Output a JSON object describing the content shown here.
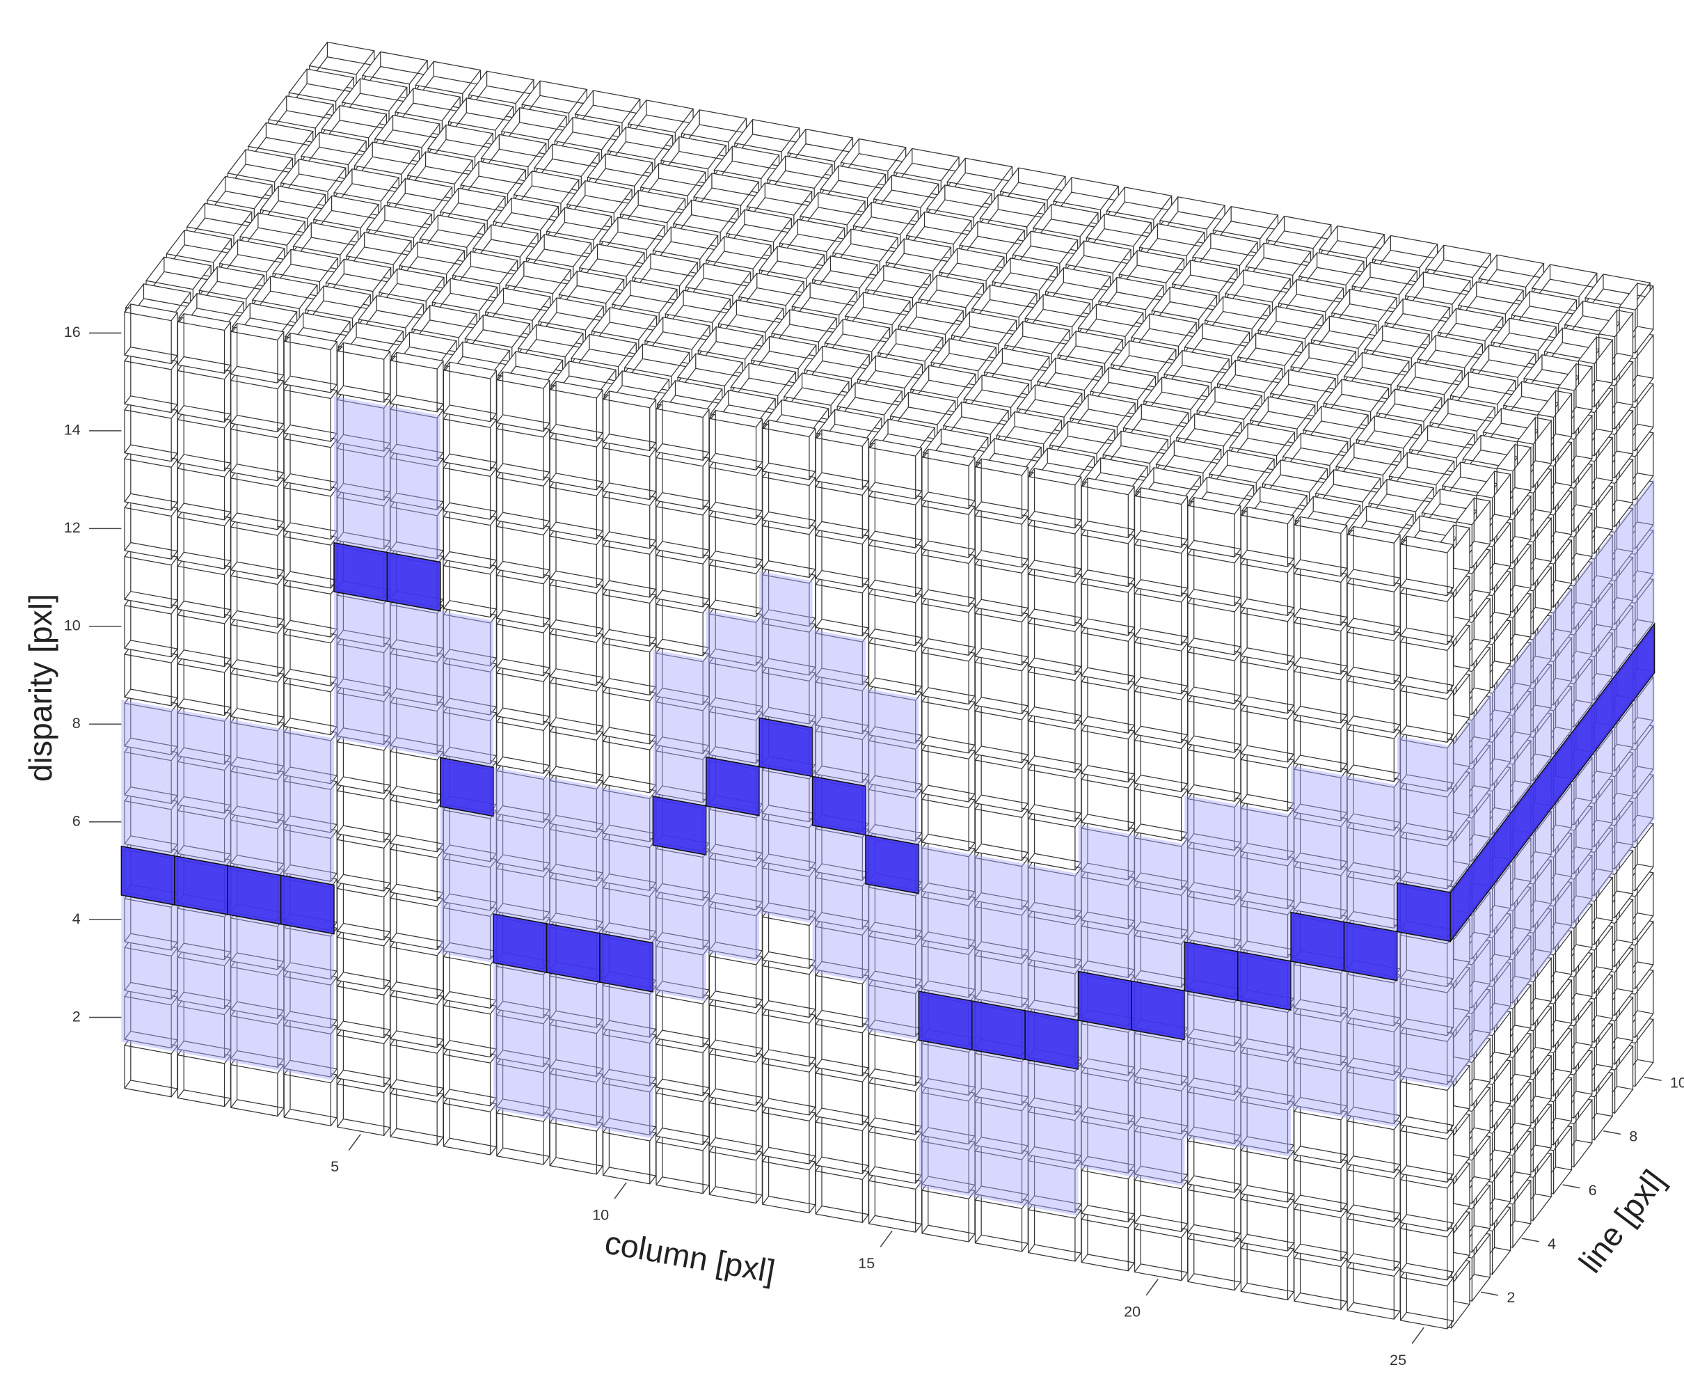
{
  "chart_data": {
    "type": "voxel3d",
    "xlabel": "column [pxl]",
    "ylabel": "disparity [pxl]",
    "zlabel": "line [pxl]",
    "xlim": [
      0.5,
      25.5
    ],
    "ylim": [
      0.5,
      16.5
    ],
    "zlim": [
      0.5,
      10.5
    ],
    "xticks": [
      5,
      10,
      15,
      20,
      25
    ],
    "yticks": [
      2,
      4,
      6,
      8,
      10,
      12,
      14,
      16
    ],
    "zticks": [
      2,
      4,
      6,
      8,
      10
    ],
    "x": [
      1,
      2,
      3,
      4,
      5,
      6,
      7,
      8,
      9,
      10,
      11,
      12,
      13,
      14,
      15,
      16,
      17,
      18,
      19,
      20,
      21,
      22,
      23,
      24,
      25
    ],
    "disparity": [
      5,
      5,
      5,
      5,
      12,
      12,
      8,
      5,
      5,
      5,
      8,
      9,
      10,
      9,
      8,
      5,
      5,
      5,
      6,
      6,
      7,
      7,
      8,
      8,
      9
    ],
    "range_low": [
      2,
      2,
      2,
      2,
      9,
      9,
      5,
      2,
      2,
      2,
      5,
      6,
      7,
      6,
      5,
      2,
      2,
      2,
      3,
      3,
      4,
      4,
      5,
      5,
      6
    ],
    "range_high": [
      8,
      8,
      8,
      8,
      15,
      15,
      11,
      8,
      8,
      8,
      11,
      12,
      13,
      12,
      11,
      8,
      8,
      8,
      9,
      9,
      10,
      10,
      11,
      11,
      12
    ],
    "color": "#3a2ff0",
    "range_color": "#a8a8ff"
  }
}
